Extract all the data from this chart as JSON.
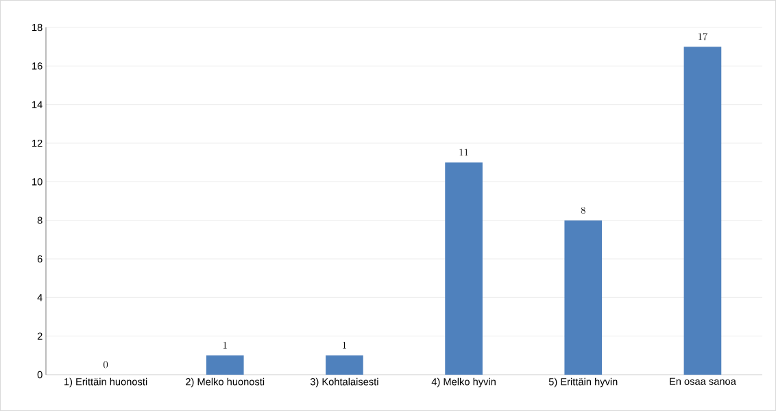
{
  "chart_data": {
    "type": "bar",
    "categories": [
      "1) Erittäin huonosti",
      "2) Melko huonosti",
      "3) Kohtalaisesti",
      "4) Melko hyvin",
      "5) Erittäin hyvin",
      "En osaa sanoa"
    ],
    "values": [
      0,
      1,
      1,
      11,
      8,
      17
    ],
    "color": "#4f81bd",
    "ylim": [
      0,
      18
    ],
    "yticks": [
      0,
      2,
      4,
      6,
      8,
      10,
      12,
      14,
      16,
      18
    ],
    "grid": "y",
    "data_labels": true
  }
}
